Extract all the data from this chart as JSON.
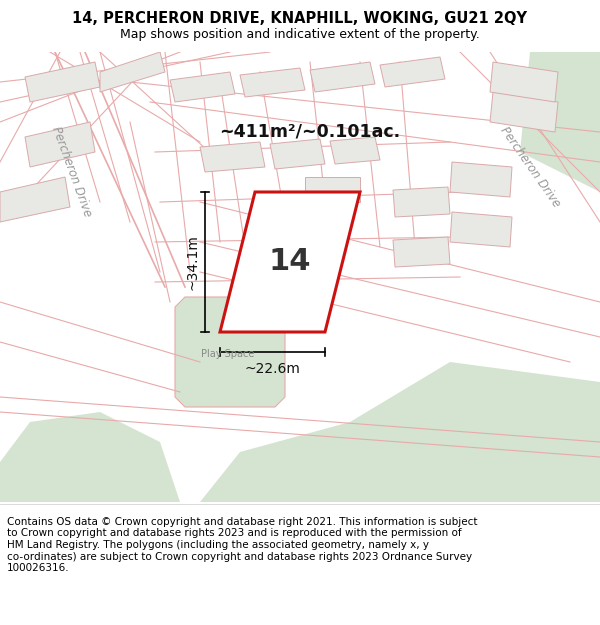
{
  "title_line1": "14, PERCHERON DRIVE, KNAPHILL, WOKING, GU21 2QY",
  "title_line2": "Map shows position and indicative extent of the property.",
  "footer_text": "Contains OS data © Crown copyright and database right 2021. This information is subject\nto Crown copyright and database rights 2023 and is reproduced with the permission of\nHM Land Registry. The polygons (including the associated geometry, namely x, y\nco-ordinates) are subject to Crown copyright and database rights 2023 Ordnance Survey\n100026316.",
  "map_bg": "#f8f8f6",
  "road_outline_color": "#e8aaaa",
  "building_fill": "#e8e8e5",
  "building_edge": "#d8aaaa",
  "green_color": "#d4e4d0",
  "plot_outline_color": "#cc1111",
  "plot_fill": "#ffffff",
  "plot_number": "14",
  "area_text": "~411m²/~0.101ac.",
  "dim_width": "~22.6m",
  "dim_height": "~34.1m",
  "label_percheron_drive_right": "Percheron Drive",
  "label_percheron_drive_left": "Percheron Drive",
  "label_play_space": "Play Space",
  "fig_width": 6.0,
  "fig_height": 6.25,
  "dpi": 100,
  "title_fontsize": 10.5,
  "subtitle_fontsize": 9,
  "footer_fontsize": 7.5
}
